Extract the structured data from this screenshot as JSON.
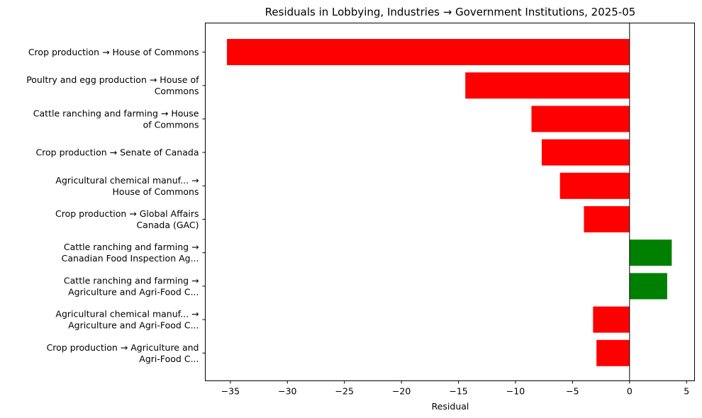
{
  "chart_data": {
    "type": "bar",
    "orientation": "horizontal",
    "title": "Residuals in Lobbying, Industries → Government Institutions, 2025-05",
    "xlabel": "Residual",
    "ylabel": "",
    "xlim": [
      -37.2,
      5.7
    ],
    "xticks": [
      -35,
      -30,
      -25,
      -20,
      -15,
      -10,
      -5,
      0,
      5
    ],
    "xtick_labels": [
      "−35",
      "−30",
      "−25",
      "−20",
      "−15",
      "−10",
      "−5",
      "0",
      "5"
    ],
    "grid": false,
    "colors": {
      "negative": "#ff0000",
      "positive": "#008000"
    },
    "categories": [
      [
        "Crop production → House of Commons"
      ],
      [
        "Poultry and egg production → House of",
        "Commons"
      ],
      [
        "Cattle ranching and farming → House",
        "of Commons"
      ],
      [
        "Crop production → Senate of Canada"
      ],
      [
        "Agricultural chemical manuf... →",
        "House of Commons"
      ],
      [
        "Crop production → Global Affairs",
        "Canada (GAC)"
      ],
      [
        "Cattle ranching and farming →",
        "Canadian Food Inspection Ag..."
      ],
      [
        "Cattle ranching and farming →",
        "Agriculture and Agri-Food C..."
      ],
      [
        "Agricultural chemical manuf... →",
        "Agriculture and Agri-Food C..."
      ],
      [
        "Crop production → Agriculture and",
        "Agri-Food C..."
      ]
    ],
    "values": [
      -35.3,
      -14.4,
      -8.6,
      -7.7,
      -6.1,
      -4.0,
      3.7,
      3.3,
      -3.2,
      -2.9
    ]
  }
}
